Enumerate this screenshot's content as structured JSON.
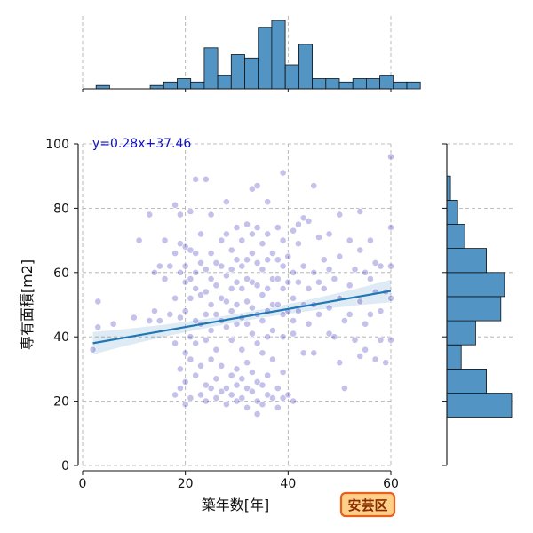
{
  "chart_data": {
    "type": "scatter",
    "title": "",
    "xlabel": "築年数[年]",
    "ylabel": "専有面積[m2]",
    "xlim": [
      0,
      60
    ],
    "ylim": [
      0,
      100
    ],
    "x_ticks": [
      0,
      20,
      40,
      60
    ],
    "y_ticks": [
      0,
      20,
      40,
      60,
      80,
      100
    ],
    "grid": true,
    "regression": {
      "label": "y=0.28x+37.46",
      "slope": 0.28,
      "intercept": 37.46,
      "x_range": [
        2,
        60
      ],
      "ci_half_width_ends": 3.5,
      "ci_half_width_center": 1.3,
      "color": "#1f77b4"
    },
    "region_badge": "安芸区",
    "colors": {
      "points": "#2b1fb4",
      "hist_fill": "#5295c5",
      "hist_edge": "#111111",
      "label": "#1010c0",
      "badge_fill": "#ffd08a",
      "badge_edge": "#e8601a"
    },
    "series": [
      {
        "points": [
          [
            2,
            36
          ],
          [
            3,
            51
          ],
          [
            3,
            43
          ],
          [
            6,
            44
          ],
          [
            10,
            46
          ],
          [
            11,
            70
          ],
          [
            13,
            78
          ],
          [
            13,
            45
          ],
          [
            14,
            60
          ],
          [
            14,
            48
          ],
          [
            15,
            62
          ],
          [
            15,
            45
          ],
          [
            16,
            70
          ],
          [
            16,
            58
          ],
          [
            17,
            62
          ],
          [
            17,
            47
          ],
          [
            18,
            81
          ],
          [
            18,
            66
          ],
          [
            18,
            52
          ],
          [
            18,
            38
          ],
          [
            18,
            22
          ],
          [
            19,
            78
          ],
          [
            19,
            69
          ],
          [
            19,
            60
          ],
          [
            19,
            46
          ],
          [
            19,
            30
          ],
          [
            19,
            24
          ],
          [
            20,
            68
          ],
          [
            20,
            62
          ],
          [
            20,
            57
          ],
          [
            20,
            48
          ],
          [
            20,
            35
          ],
          [
            20,
            26
          ],
          [
            20,
            19
          ],
          [
            21,
            79
          ],
          [
            21,
            67
          ],
          [
            21,
            58
          ],
          [
            21,
            52
          ],
          [
            21,
            40
          ],
          [
            21,
            33
          ],
          [
            21,
            21
          ],
          [
            22,
            89
          ],
          [
            22,
            66
          ],
          [
            22,
            60
          ],
          [
            22,
            55
          ],
          [
            22,
            45
          ],
          [
            22,
            38
          ],
          [
            22,
            28
          ],
          [
            23,
            72
          ],
          [
            23,
            63
          ],
          [
            23,
            53
          ],
          [
            23,
            44
          ],
          [
            23,
            31
          ],
          [
            23,
            22
          ],
          [
            24,
            89
          ],
          [
            24,
            61
          ],
          [
            24,
            54
          ],
          [
            24,
            47
          ],
          [
            24,
            39
          ],
          [
            24,
            25
          ],
          [
            24,
            20
          ],
          [
            25,
            78
          ],
          [
            25,
            66
          ],
          [
            25,
            58
          ],
          [
            25,
            50
          ],
          [
            25,
            42
          ],
          [
            25,
            33
          ],
          [
            25,
            24
          ],
          [
            26,
            63
          ],
          [
            26,
            56
          ],
          [
            26,
            47
          ],
          [
            26,
            36
          ],
          [
            26,
            27
          ],
          [
            26,
            21
          ],
          [
            27,
            70
          ],
          [
            27,
            62
          ],
          [
            27,
            52
          ],
          [
            27,
            45
          ],
          [
            27,
            31
          ],
          [
            27,
            23
          ],
          [
            28,
            82
          ],
          [
            28,
            72
          ],
          [
            28,
            59
          ],
          [
            28,
            51
          ],
          [
            28,
            43
          ],
          [
            28,
            24
          ],
          [
            28,
            19
          ],
          [
            29,
            67
          ],
          [
            29,
            61
          ],
          [
            29,
            55
          ],
          [
            29,
            48
          ],
          [
            29,
            39
          ],
          [
            29,
            28
          ],
          [
            29,
            22
          ],
          [
            30,
            74
          ],
          [
            30,
            64
          ],
          [
            30,
            57
          ],
          [
            30,
            50
          ],
          [
            30,
            44
          ],
          [
            30,
            30
          ],
          [
            30,
            25
          ],
          [
            30,
            20
          ],
          [
            31,
            70
          ],
          [
            31,
            62
          ],
          [
            31,
            55
          ],
          [
            31,
            46
          ],
          [
            31,
            36
          ],
          [
            31,
            27
          ],
          [
            31,
            21
          ],
          [
            32,
            75
          ],
          [
            32,
            64
          ],
          [
            32,
            58
          ],
          [
            32,
            51
          ],
          [
            32,
            44
          ],
          [
            32,
            32
          ],
          [
            32,
            24
          ],
          [
            32,
            18
          ],
          [
            33,
            86
          ],
          [
            33,
            72
          ],
          [
            33,
            66
          ],
          [
            33,
            57
          ],
          [
            33,
            49
          ],
          [
            33,
            41
          ],
          [
            33,
            29
          ],
          [
            33,
            23
          ],
          [
            34,
            87
          ],
          [
            34,
            74
          ],
          [
            34,
            63
          ],
          [
            34,
            56
          ],
          [
            34,
            47
          ],
          [
            34,
            38
          ],
          [
            34,
            26
          ],
          [
            34,
            20
          ],
          [
            34,
            16
          ],
          [
            35,
            69
          ],
          [
            35,
            61
          ],
          [
            35,
            53
          ],
          [
            35,
            45
          ],
          [
            35,
            35
          ],
          [
            35,
            25
          ],
          [
            35,
            19
          ],
          [
            36,
            82
          ],
          [
            36,
            72
          ],
          [
            36,
            64
          ],
          [
            36,
            55
          ],
          [
            36,
            48
          ],
          [
            36,
            40
          ],
          [
            36,
            28
          ],
          [
            36,
            22
          ],
          [
            37,
            66
          ],
          [
            37,
            58
          ],
          [
            37,
            50
          ],
          [
            37,
            42
          ],
          [
            37,
            33
          ],
          [
            37,
            21
          ],
          [
            38,
            74
          ],
          [
            38,
            64
          ],
          [
            38,
            58
          ],
          [
            38,
            50
          ],
          [
            38,
            24
          ],
          [
            38,
            18
          ],
          [
            39,
            91
          ],
          [
            39,
            70
          ],
          [
            39,
            62
          ],
          [
            39,
            55
          ],
          [
            39,
            47
          ],
          [
            39,
            40
          ],
          [
            39,
            29
          ],
          [
            39,
            21
          ],
          [
            40,
            65
          ],
          [
            40,
            57
          ],
          [
            40,
            48
          ],
          [
            40,
            22
          ],
          [
            41,
            73
          ],
          [
            41,
            60
          ],
          [
            41,
            52
          ],
          [
            41,
            45
          ],
          [
            41,
            41
          ],
          [
            41,
            20
          ],
          [
            42,
            75
          ],
          [
            42,
            69
          ],
          [
            42,
            57
          ],
          [
            42,
            48
          ],
          [
            43,
            77
          ],
          [
            43,
            62
          ],
          [
            43,
            50
          ],
          [
            43,
            35
          ],
          [
            44,
            76
          ],
          [
            44,
            55
          ],
          [
            44,
            44
          ],
          [
            45,
            87
          ],
          [
            45,
            60
          ],
          [
            45,
            50
          ],
          [
            45,
            35
          ],
          [
            46,
            71
          ],
          [
            46,
            57
          ],
          [
            46,
            47
          ],
          [
            47,
            64
          ],
          [
            47,
            55
          ],
          [
            48,
            72
          ],
          [
            48,
            61
          ],
          [
            48,
            49
          ],
          [
            48,
            41
          ],
          [
            49,
            58
          ],
          [
            49,
            40
          ],
          [
            50,
            78
          ],
          [
            50,
            65
          ],
          [
            50,
            52
          ],
          [
            50,
            32
          ],
          [
            51,
            45
          ],
          [
            51,
            24
          ],
          [
            52,
            70
          ],
          [
            52,
            56
          ],
          [
            52,
            47
          ],
          [
            53,
            61
          ],
          [
            53,
            39
          ],
          [
            54,
            79
          ],
          [
            54,
            67
          ],
          [
            54,
            51
          ],
          [
            54,
            34
          ],
          [
            55,
            60
          ],
          [
            55,
            44
          ],
          [
            55,
            36
          ],
          [
            56,
            70
          ],
          [
            56,
            58
          ],
          [
            56,
            47
          ],
          [
            57,
            63
          ],
          [
            57,
            54
          ],
          [
            57,
            33
          ],
          [
            58,
            62
          ],
          [
            58,
            48
          ],
          [
            58,
            39
          ],
          [
            59,
            54
          ],
          [
            59,
            32
          ],
          [
            60,
            96
          ],
          [
            60,
            74
          ],
          [
            60,
            62
          ],
          [
            60,
            52
          ],
          [
            60,
            39
          ]
        ]
      }
    ],
    "x_histogram": {
      "bin_width": 2.63,
      "counts": [
        0,
        1,
        0,
        0,
        0,
        1,
        2,
        3,
        2,
        12,
        4,
        10,
        9,
        18,
        20,
        7,
        13,
        3,
        3,
        2,
        3,
        3,
        4,
        2,
        2
      ]
    },
    "y_histogram": {
      "bin_edges": [
        15,
        22.5,
        30,
        37.5,
        45,
        52.5,
        60,
        67.5,
        75,
        82.5,
        90,
        97.5
      ],
      "counts": [
        18,
        11,
        4,
        8,
        15,
        16,
        11,
        5,
        3,
        1,
        0
      ]
    }
  }
}
